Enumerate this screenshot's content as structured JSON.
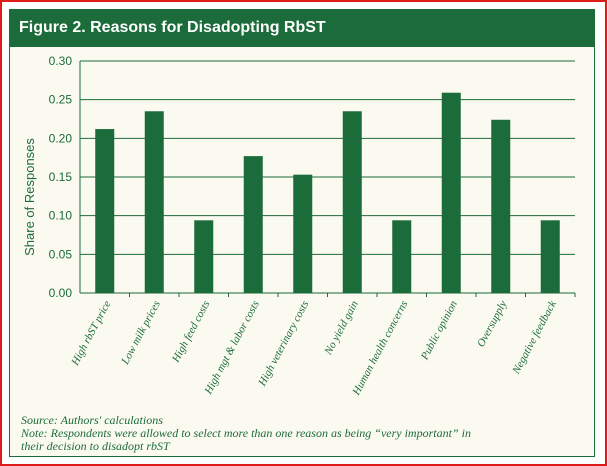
{
  "chart_data": {
    "type": "bar",
    "title": "Figure 2. Reasons for Disadopting RbST",
    "xlabel": "",
    "ylabel": "Share of Responses",
    "ylim": [
      0,
      0.3
    ],
    "yticks": [
      "0.00",
      "0.05",
      "0.10",
      "0.15",
      "0.20",
      "0.25",
      "0.30"
    ],
    "grid": true,
    "categories": [
      "High rbST price",
      "Low milk prices",
      "High feed costs",
      "High mgt & labor costs",
      "High veterinary costs",
      "No yield gain",
      "Human health concerns",
      "Public opinion",
      "Oversupply",
      "Negative feedback"
    ],
    "values": [
      0.212,
      0.235,
      0.094,
      0.177,
      0.153,
      0.235,
      0.094,
      0.259,
      0.224,
      0.094
    ],
    "bar_color": "#1c6b3a"
  },
  "notes": {
    "source": "Source: Authors' calculations",
    "note_line1": "Note: Respondents were allowed to select more than one reason as being “very important” in",
    "note_line2": "their decision to disadopt rbST"
  },
  "colors": {
    "accent": "#1c6b3a",
    "panel": "#fbfaf0",
    "border": "#e01b1b"
  }
}
